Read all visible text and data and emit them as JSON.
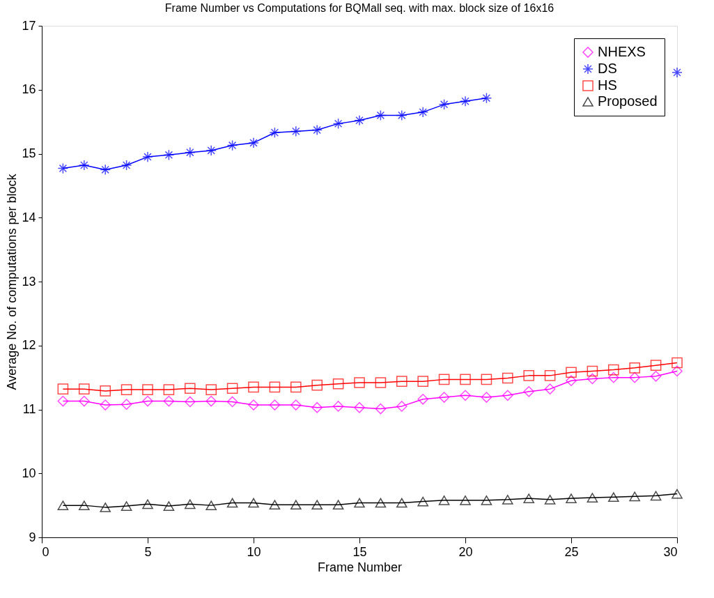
{
  "chart_data": {
    "type": "line",
    "title": "Frame Number vs Computations for BQMall seq. with max. block size of 16x16",
    "xlabel": "Frame Number",
    "ylabel": "Average No. of computations per block",
    "x": [
      1,
      2,
      3,
      4,
      5,
      6,
      7,
      8,
      9,
      10,
      11,
      12,
      13,
      14,
      15,
      16,
      17,
      18,
      19,
      20,
      21,
      22,
      23,
      24,
      25,
      26,
      27,
      28,
      29,
      30
    ],
    "series": [
      {
        "name": "NHEXS",
        "color": "#ff00ff",
        "marker": "diamond",
        "values": [
          11.13,
          11.13,
          11.07,
          11.08,
          11.13,
          11.13,
          11.12,
          11.13,
          11.12,
          11.07,
          11.07,
          11.07,
          11.03,
          11.05,
          11.03,
          11.01,
          11.05,
          11.16,
          11.19,
          11.22,
          11.19,
          11.22,
          11.28,
          11.32,
          11.45,
          11.48,
          11.5,
          11.5,
          11.52,
          11.6
        ]
      },
      {
        "name": "DS",
        "color": "#0000ff",
        "marker": "cross",
        "values": [
          14.77,
          14.82,
          14.75,
          14.82,
          14.95,
          14.98,
          15.02,
          15.05,
          15.13,
          15.17,
          15.33,
          15.35,
          15.37,
          15.47,
          15.52,
          15.6,
          15.6,
          15.65,
          15.77,
          15.82,
          15.87,
          null,
          null,
          null,
          null,
          null,
          null,
          null,
          null,
          16.27
        ]
      },
      {
        "name": "HS",
        "color": "#ff0000",
        "marker": "square",
        "values": [
          11.32,
          11.32,
          11.29,
          11.31,
          11.31,
          11.31,
          11.33,
          11.31,
          11.33,
          11.35,
          11.35,
          11.35,
          11.38,
          11.4,
          11.42,
          11.42,
          11.44,
          11.44,
          11.47,
          11.47,
          11.47,
          11.49,
          11.53,
          11.53,
          11.58,
          11.6,
          11.62,
          11.65,
          11.69,
          11.73
        ]
      },
      {
        "name": "Proposed",
        "color": "#000000",
        "marker": "triangle",
        "values": [
          9.5,
          9.5,
          9.47,
          9.49,
          9.52,
          9.49,
          9.52,
          9.5,
          9.54,
          9.54,
          9.51,
          9.51,
          9.51,
          9.51,
          9.54,
          9.54,
          9.54,
          9.56,
          9.58,
          9.58,
          9.58,
          9.59,
          9.61,
          9.59,
          9.61,
          9.62,
          9.63,
          9.64,
          9.65,
          9.68
        ]
      }
    ],
    "xlim": [
      0,
      30
    ],
    "xticks": [
      0,
      5,
      10,
      15,
      20,
      25,
      30
    ],
    "ylim": [
      9,
      17
    ],
    "yticks": [
      9,
      10,
      11,
      12,
      13,
      14,
      15,
      16,
      17
    ],
    "grid": false,
    "legend": "top right",
    "line_style": "solid"
  }
}
